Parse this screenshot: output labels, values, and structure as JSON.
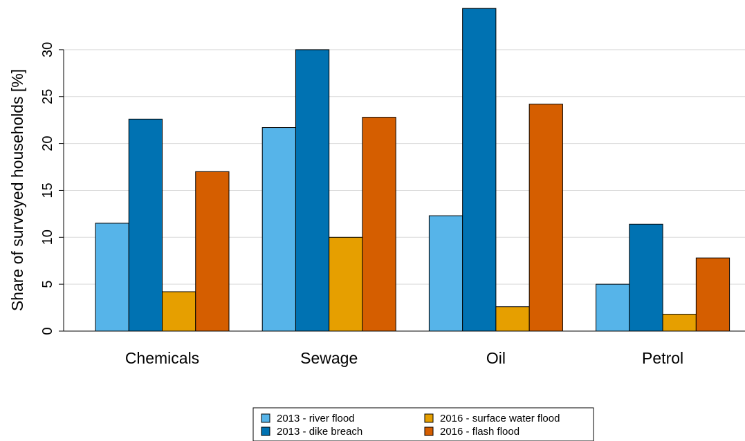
{
  "chart_data": {
    "type": "bar",
    "title": "",
    "xlabel": "",
    "ylabel": "Share of surveyed households [%]",
    "ylim": [
      0,
      34.5
    ],
    "yticks": [
      0,
      5,
      10,
      15,
      20,
      25,
      30
    ],
    "grid": "horizontal",
    "legend_position": "bottom",
    "categories": [
      "Chemicals",
      "Sewage",
      "Oil",
      "Petrol"
    ],
    "series": [
      {
        "name": "2013 - river flood",
        "color": "#56b4e9",
        "values": [
          11.5,
          21.7,
          12.3,
          5.0
        ]
      },
      {
        "name": "2013 - dike breach",
        "color": "#0072b2",
        "values": [
          22.6,
          30.0,
          34.4,
          11.4
        ]
      },
      {
        "name": "2016 - surface water flood",
        "color": "#e69f00",
        "values": [
          4.2,
          10.0,
          2.6,
          1.8
        ]
      },
      {
        "name": "2016 - flash flood",
        "color": "#d55e00",
        "values": [
          17.0,
          22.8,
          24.2,
          7.8
        ]
      }
    ]
  }
}
